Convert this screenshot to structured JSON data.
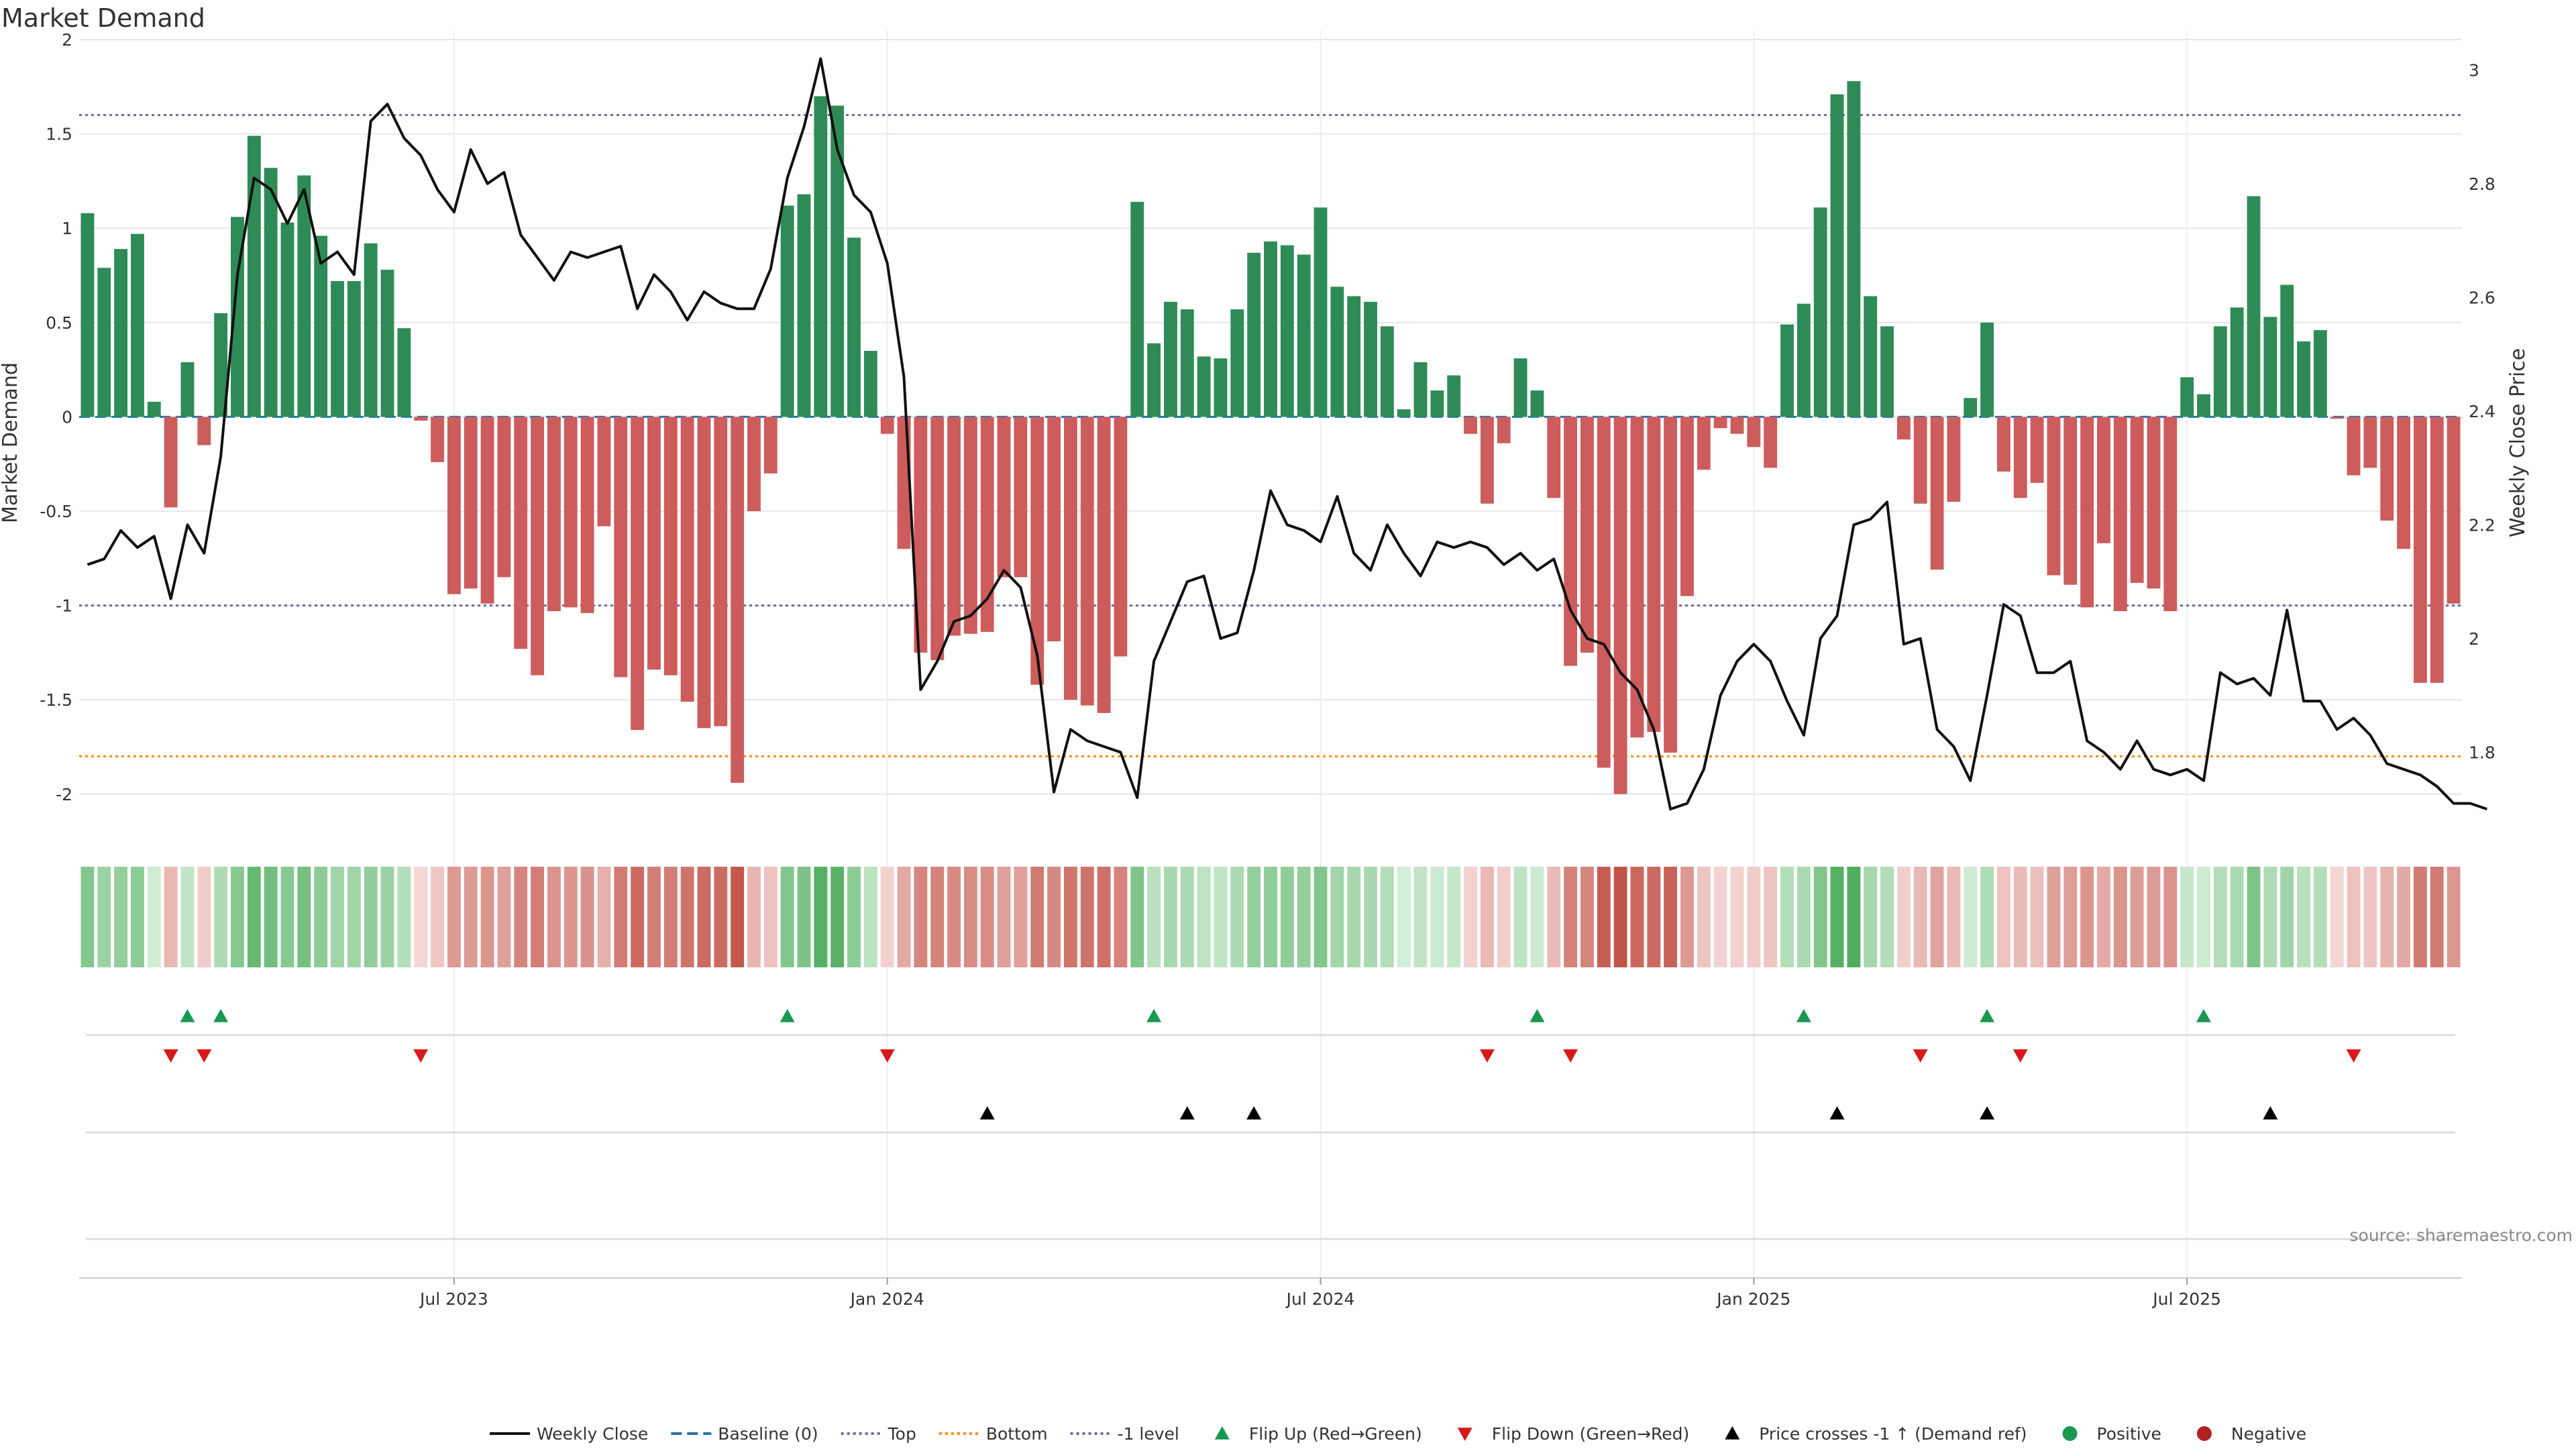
{
  "colors": {
    "positive": "#2e8b57",
    "negative": "#cd5c5c",
    "price": "#111111",
    "top": "#6a6aa0",
    "bottom": "#ff8c00",
    "minus1": "#6a6aa0",
    "baseline": "#1f77b4",
    "flip_up": "#1a9850",
    "flip_down": "#d7191c",
    "cross": "#000000",
    "grid": "#e6e6e6"
  },
  "chart_data": {
    "type": "bar",
    "title": "Market Demand",
    "ylabel": "Market Demand",
    "y2label": "Weekly Close Price",
    "ylim": [
      -2.2,
      2.05
    ],
    "y2lim": [
      1.66,
      3.07
    ],
    "yticks": [
      "2",
      "1.5",
      "1",
      "0.5",
      "0",
      "-0.5",
      "-1",
      "-1.5",
      "-2"
    ],
    "y2ticks": [
      "3",
      "2.8",
      "2.6",
      "2.4",
      "2.2",
      "2",
      "1.8"
    ],
    "xticks": [
      {
        "label": "Jul 2023",
        "week": 22
      },
      {
        "label": "Jan 2024",
        "week": 48
      },
      {
        "label": "Jul 2024",
        "week": 74
      },
      {
        "label": "Jan 2025",
        "week": 100
      },
      {
        "label": "Jul 2025",
        "week": 126
      }
    ],
    "reference_lines": {
      "top": 1.6,
      "bottom": -1.8,
      "minus1": -1,
      "baseline": 0
    },
    "demand": [
      1.08,
      0.79,
      0.89,
      0.97,
      0.08,
      -0.48,
      0.29,
      -0.15,
      0.55,
      1.06,
      1.49,
      1.32,
      1.03,
      1.28,
      0.96,
      0.72,
      0.72,
      0.92,
      0.78,
      0.47,
      -0.02,
      -0.24,
      -0.94,
      -0.91,
      -0.99,
      -0.85,
      -1.23,
      -1.37,
      -1.03,
      -1.01,
      -1.04,
      -0.58,
      -1.38,
      -1.66,
      -1.34,
      -1.37,
      -1.51,
      -1.65,
      -1.64,
      -1.94,
      -0.5,
      -0.3,
      1.12,
      1.18,
      1.7,
      1.65,
      0.95,
      0.35,
      -0.09,
      -0.7,
      -1.25,
      -1.29,
      -1.16,
      -1.15,
      -1.14,
      -0.85,
      -0.85,
      -1.42,
      -1.19,
      -1.5,
      -1.53,
      -1.57,
      -1.27,
      1.14,
      0.39,
      0.61,
      0.57,
      0.32,
      0.31,
      0.57,
      0.87,
      0.93,
      0.91,
      0.86,
      1.11,
      0.69,
      0.64,
      0.61,
      0.48,
      0.04,
      0.29,
      0.14,
      0.22,
      -0.09,
      -0.46,
      -0.14,
      0.31,
      0.14,
      -0.43,
      -1.32,
      -1.25,
      -1.86,
      -2.0,
      -1.7,
      -1.67,
      -1.78,
      -0.95,
      -0.28,
      -0.06,
      -0.09,
      -0.16,
      -0.27,
      0.49,
      0.6,
      1.11,
      1.71,
      1.78,
      0.64,
      0.48,
      -0.12,
      -0.46,
      -0.81,
      -0.45,
      0.1,
      0.5,
      -0.29,
      -0.43,
      -0.35,
      -0.84,
      -0.89,
      -1.01,
      -0.67,
      -1.03,
      -0.88,
      -0.91,
      -1.03,
      0.21,
      0.12,
      0.48,
      0.58,
      1.17,
      0.53,
      0.7,
      0.4,
      0.46,
      -0.01,
      -0.31,
      -0.27,
      -0.55,
      -0.7,
      -1.41,
      -1.41,
      -0.99
    ],
    "price": [
      2.13,
      2.14,
      2.19,
      2.16,
      2.18,
      2.07,
      2.2,
      2.15,
      2.32,
      2.64,
      2.81,
      2.79,
      2.73,
      2.79,
      2.66,
      2.68,
      2.64,
      2.91,
      2.94,
      2.88,
      2.85,
      2.79,
      2.75,
      2.86,
      2.8,
      2.82,
      2.71,
      2.67,
      2.63,
      2.68,
      2.67,
      2.68,
      2.69,
      2.58,
      2.64,
      2.61,
      2.56,
      2.61,
      2.59,
      2.58,
      2.58,
      2.65,
      2.81,
      2.9,
      3.02,
      2.86,
      2.78,
      2.75,
      2.66,
      2.46,
      1.91,
      1.96,
      2.03,
      2.04,
      2.07,
      2.12,
      2.09,
      1.97,
      1.73,
      1.84,
      1.82,
      1.81,
      1.8,
      1.72,
      1.96,
      2.03,
      2.1,
      2.11,
      2.0,
      2.01,
      2.12,
      2.26,
      2.2,
      2.19,
      2.17,
      2.25,
      2.15,
      2.12,
      2.2,
      2.15,
      2.11,
      2.17,
      2.16,
      2.17,
      2.16,
      2.13,
      2.15,
      2.12,
      2.14,
      2.05,
      2.0,
      1.99,
      1.94,
      1.91,
      1.84,
      1.7,
      1.71,
      1.77,
      1.9,
      1.96,
      1.99,
      1.96,
      1.89,
      1.83,
      2.0,
      2.04,
      2.2,
      2.21,
      2.24,
      1.99,
      2.0,
      1.84,
      1.81,
      1.75,
      1.9,
      2.06,
      2.04,
      1.94,
      1.94,
      1.96,
      1.82,
      1.8,
      1.77,
      1.82,
      1.77,
      1.76,
      1.77,
      1.75,
      1.94,
      1.92,
      1.93,
      1.9,
      2.05,
      1.89,
      1.89,
      1.84,
      1.86,
      1.83,
      1.78,
      1.77,
      1.76,
      1.74,
      1.71,
      1.71,
      1.7
    ],
    "flip_up_weeks": [
      6,
      8,
      42,
      64,
      87,
      103,
      114,
      127
    ],
    "flip_down_weeks": [
      5,
      7,
      20,
      48,
      84,
      89,
      110,
      116,
      136
    ],
    "price_cross_weeks": [
      54,
      66,
      70,
      105,
      114,
      131
    ]
  },
  "legend": [
    {
      "label": "Weekly Close",
      "icon": "line"
    },
    {
      "label": "Baseline (0)",
      "icon": "dash"
    },
    {
      "label": "Top",
      "icon": "dot"
    },
    {
      "label": "Bottom",
      "icon": "dot-orange"
    },
    {
      "label": "-1 level",
      "icon": "dot"
    },
    {
      "label": "Flip Up (Red→Green)",
      "icon": "triangle-up-green"
    },
    {
      "label": "Flip Down (Green→Red)",
      "icon": "triangle-down-red"
    },
    {
      "label": "Price crosses -1 ↑ (Demand ref)",
      "icon": "triangle-up-black"
    },
    {
      "label": "Positive",
      "icon": "circle-green"
    },
    {
      "label": "Negative",
      "icon": "circle-red"
    }
  ],
  "source": "source: sharemaestro.com"
}
